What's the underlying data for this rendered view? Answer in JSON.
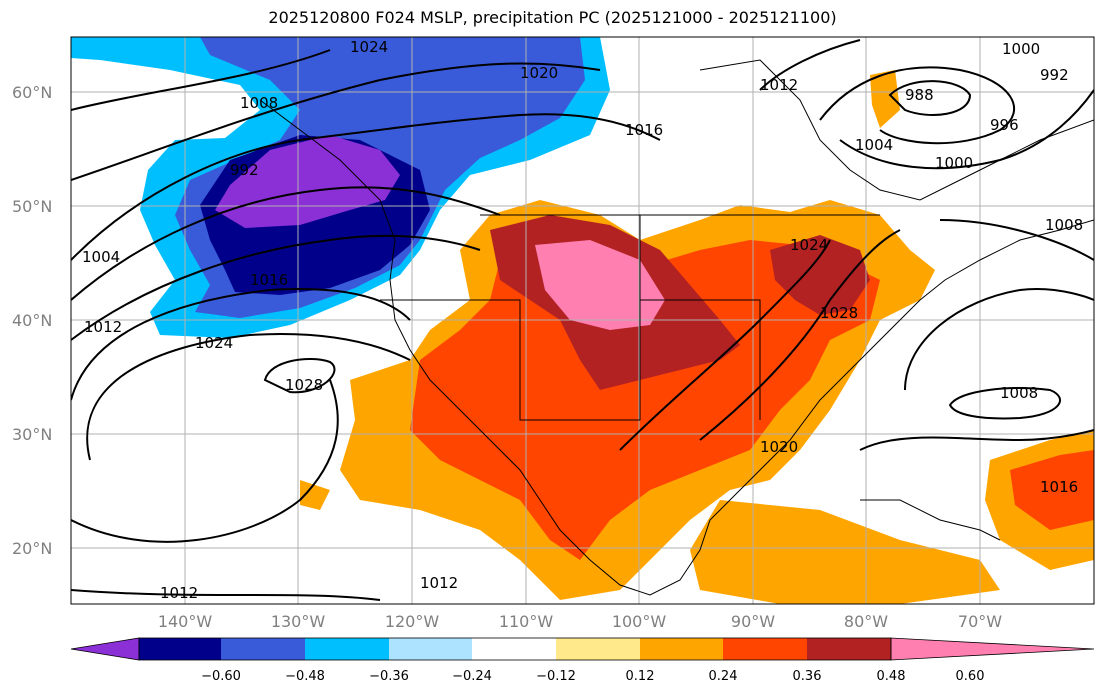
{
  "title": "2025120800 F024 MSLP, precipitation PC (2025121000 - 2025121100)",
  "map": {
    "lat_labels": [
      "60°N",
      "50°N",
      "40°N",
      "30°N",
      "20°N"
    ],
    "lon_labels": [
      "140°W",
      "130°W",
      "120°W",
      "110°W",
      "100°W",
      "90°W",
      "80°W",
      "70°W"
    ],
    "isobar_labels": [
      "1024",
      "1020",
      "1016",
      "1012",
      "1008",
      "992",
      "1004",
      "1016",
      "1012",
      "1024",
      "1028",
      "1012",
      "1024",
      "1028",
      "1020",
      "1012",
      "1000",
      "1004",
      "988",
      "992",
      "996",
      "1000",
      "1008",
      "1008",
      "1016"
    ]
  },
  "colorbar": {
    "colors": [
      "#8b2fd6",
      "#00008b",
      "#3a5bd9",
      "#00bfff",
      "#aee3ff",
      "#ffffff",
      "#ffe98a",
      "#ffa500",
      "#ff4500",
      "#b22222",
      "#ff7fb0"
    ],
    "tick_labels": [
      "−0.60",
      "−0.48",
      "−0.36",
      "−0.24",
      "−0.12",
      "0.12",
      "0.24",
      "0.36",
      "0.48",
      "0.60"
    ]
  }
}
